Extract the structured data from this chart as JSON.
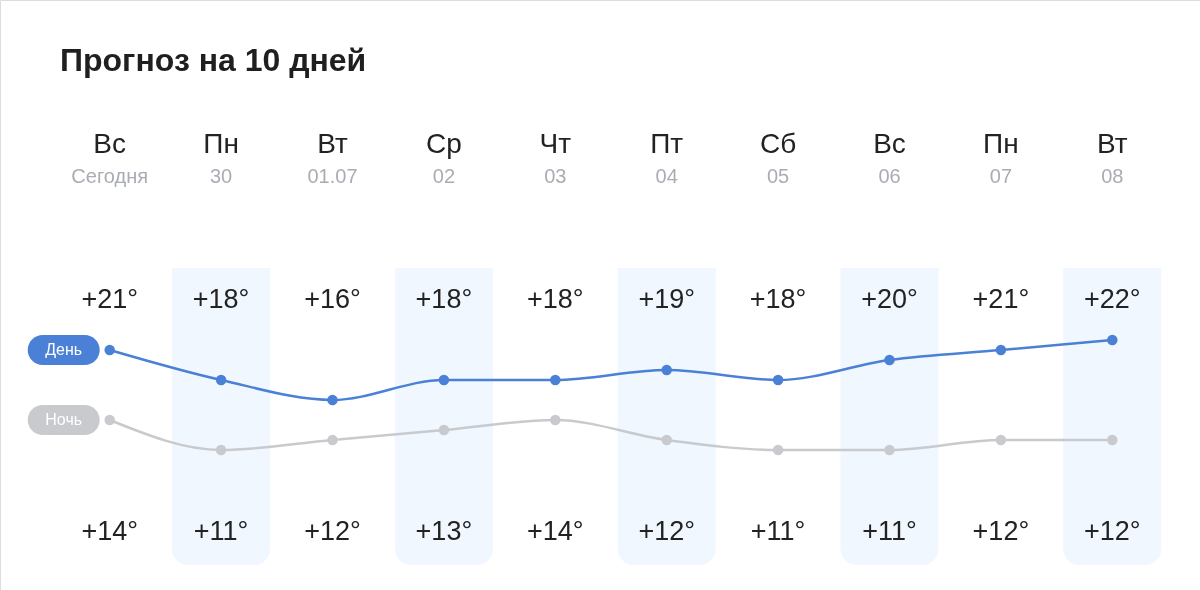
{
  "chart_data": {
    "type": "line",
    "title": "Прогноз на 10 дней",
    "categories": [
      "Вс\nСегодня",
      "Пн\n30",
      "Вт\n01.07",
      "Ср\n02",
      "Чт\n03",
      "Пт\n04",
      "Сб\n05",
      "Вс\n06",
      "Пн\n07",
      "Вт\n08"
    ],
    "series": [
      {
        "name": "День",
        "color": "#4a80d6",
        "values": [
          21,
          18,
          16,
          18,
          18,
          19,
          18,
          20,
          21,
          22
        ],
        "value_labels": [
          "+21°",
          "+18°",
          "+16°",
          "+18°",
          "+18°",
          "+19°",
          "+18°",
          "+20°",
          "+21°",
          "+22°"
        ]
      },
      {
        "name": "Ночь",
        "color": "#c8cacd",
        "values": [
          14,
          11,
          12,
          13,
          14,
          12,
          11,
          11,
          12,
          12
        ],
        "value_labels": [
          "+14°",
          "+11°",
          "+12°",
          "+13°",
          "+14°",
          "+12°",
          "+11°",
          "+11°",
          "+12°",
          "+12°"
        ]
      }
    ],
    "bands": [
      {
        "axis": "x",
        "from": "Пн\n30",
        "to": "Пн\n30",
        "color": "#f0f7fe"
      },
      {
        "axis": "x",
        "from": "Ср\n02",
        "to": "Ср\n02",
        "color": "#f0f7fe"
      },
      {
        "axis": "x",
        "from": "Пт\n04",
        "to": "Пт\n04",
        "color": "#f0f7fe"
      },
      {
        "axis": "x",
        "from": "Вс\n06",
        "to": "Вс\n06",
        "color": "#f0f7fe"
      },
      {
        "axis": "x",
        "from": "Вт\n08",
        "to": "Вт\n08",
        "color": "#f0f7fe"
      }
    ],
    "marker": "circle",
    "line_style": "solid",
    "legend": false,
    "grid": false,
    "tick_labels": "x"
  }
}
